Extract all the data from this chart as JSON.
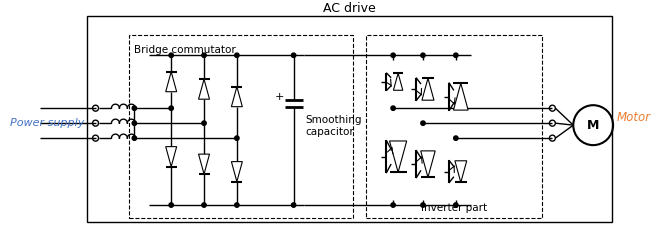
{
  "title": "AC drive",
  "label_power_supply": "Power supply",
  "label_motor": "Motor",
  "label_bridge": "Bridge commutator",
  "label_smoothing": "Smoothing\ncapacitor",
  "label_inverter": "Inverter part",
  "label_M": "M",
  "bg_color": "#ffffff",
  "line_color": "#000000",
  "text_color_blue": "#4472c4",
  "text_color_orange": "#ed7d31",
  "text_color_black": "#000000"
}
